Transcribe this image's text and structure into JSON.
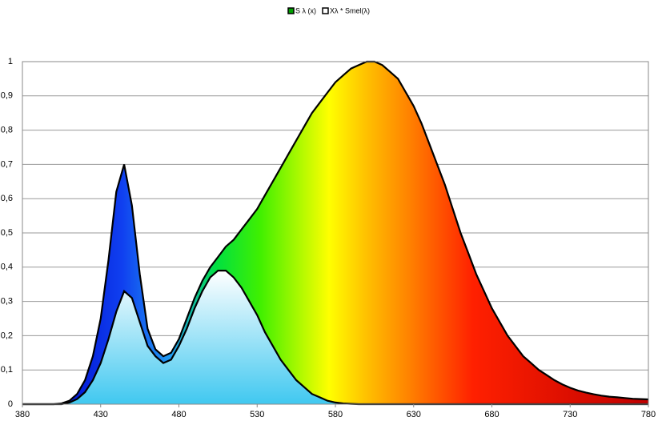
{
  "chart_data": {
    "type": "area",
    "x": [
      380,
      385,
      390,
      395,
      400,
      405,
      410,
      415,
      420,
      425,
      430,
      435,
      440,
      445,
      450,
      455,
      460,
      465,
      470,
      475,
      480,
      485,
      490,
      495,
      500,
      505,
      510,
      515,
      520,
      525,
      530,
      535,
      540,
      545,
      550,
      555,
      560,
      565,
      570,
      575,
      580,
      585,
      590,
      595,
      600,
      605,
      610,
      615,
      620,
      625,
      630,
      635,
      640,
      645,
      650,
      655,
      660,
      665,
      670,
      675,
      680,
      685,
      690,
      695,
      700,
      705,
      710,
      715,
      720,
      725,
      730,
      735,
      740,
      745,
      750,
      755,
      760,
      765,
      770,
      775,
      780
    ],
    "series": [
      {
        "name": "S λ (x)",
        "color": "#00a000",
        "values": [
          0,
          0,
          0,
          0,
          0,
          0.002,
          0.01,
          0.03,
          0.07,
          0.14,
          0.25,
          0.42,
          0.62,
          0.7,
          0.58,
          0.38,
          0.22,
          0.16,
          0.14,
          0.15,
          0.19,
          0.25,
          0.31,
          0.36,
          0.4,
          0.43,
          0.46,
          0.48,
          0.51,
          0.54,
          0.57,
          0.61,
          0.65,
          0.69,
          0.73,
          0.77,
          0.81,
          0.85,
          0.88,
          0.91,
          0.94,
          0.96,
          0.98,
          0.99,
          1.0,
          1.0,
          0.99,
          0.97,
          0.95,
          0.91,
          0.87,
          0.82,
          0.76,
          0.7,
          0.64,
          0.57,
          0.5,
          0.44,
          0.38,
          0.33,
          0.28,
          0.24,
          0.2,
          0.17,
          0.14,
          0.12,
          0.1,
          0.085,
          0.07,
          0.058,
          0.048,
          0.04,
          0.034,
          0.029,
          0.025,
          0.022,
          0.02,
          0.018,
          0.016,
          0.015,
          0.014
        ]
      },
      {
        "name": "Xλ * Smel(λ)",
        "color": "#ffffff",
        "values": [
          0,
          0,
          0,
          0,
          0,
          0,
          0.005,
          0.015,
          0.035,
          0.07,
          0.12,
          0.19,
          0.27,
          0.33,
          0.31,
          0.24,
          0.17,
          0.14,
          0.12,
          0.13,
          0.17,
          0.22,
          0.28,
          0.33,
          0.37,
          0.39,
          0.39,
          0.37,
          0.34,
          0.3,
          0.26,
          0.21,
          0.17,
          0.13,
          0.1,
          0.07,
          0.05,
          0.03,
          0.02,
          0.01,
          0.005,
          0.002,
          0.001,
          0,
          0,
          0,
          0,
          0,
          0,
          0,
          0,
          0,
          0,
          0,
          0,
          0,
          0,
          0,
          0,
          0,
          0,
          0,
          0,
          0,
          0,
          0,
          0,
          0,
          0,
          0,
          0,
          0,
          0,
          0,
          0,
          0,
          0,
          0,
          0,
          0,
          0
        ]
      }
    ],
    "xlim": [
      380,
      780
    ],
    "xticks": [
      380,
      430,
      480,
      530,
      580,
      630,
      680,
      730,
      780
    ],
    "ylim": [
      0,
      1
    ],
    "yticks": [
      0,
      {
        "value": 0.1,
        "label": "0,1"
      },
      {
        "value": 0.2,
        "label": "0,2"
      },
      {
        "value": 0.3,
        "label": "0,3"
      },
      {
        "value": 0.4,
        "label": "0,4"
      },
      {
        "value": 0.5,
        "label": "0,5"
      },
      {
        "value": 0.6,
        "label": "0,6"
      },
      {
        "value": 0.7,
        "label": "0,7"
      },
      {
        "value": 0.8,
        "label": "0,8"
      },
      {
        "value": 0.9,
        "label": "0,9"
      },
      1
    ],
    "grid": true,
    "legend": "top"
  }
}
